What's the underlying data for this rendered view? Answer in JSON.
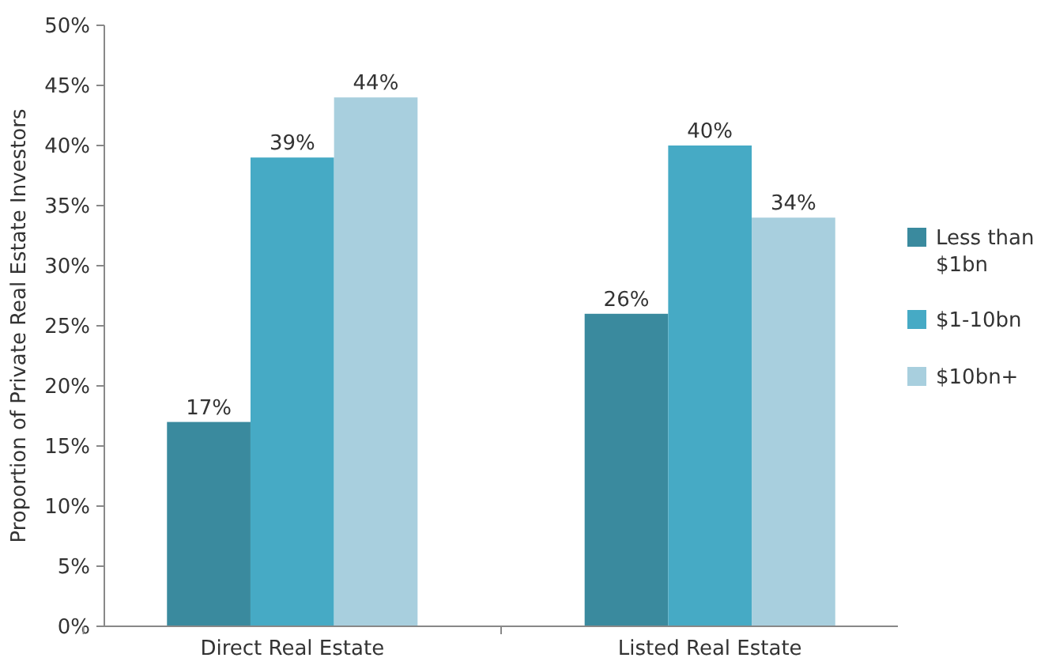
{
  "chart_data": {
    "type": "bar",
    "ylabel": "Proportion of Private Real Estate Investors",
    "categories": [
      "Direct Real Estate",
      "Listed Real Estate"
    ],
    "series": [
      {
        "name": "Less than $1bn",
        "color": "#3a8a9e",
        "values": [
          17,
          26
        ],
        "value_labels": [
          "17%",
          "26%"
        ]
      },
      {
        "name": "$1-10bn",
        "color": "#46aac5",
        "values": [
          39,
          40
        ],
        "value_labels": [
          "39%",
          "40%"
        ]
      },
      {
        "name": "$10bn+",
        "color": "#a8cfde",
        "values": [
          44,
          34
        ],
        "value_labels": [
          "44%",
          "34%"
        ]
      }
    ],
    "ylim": [
      0,
      50
    ],
    "yticks": [
      {
        "value": 0,
        "label": "0%"
      },
      {
        "value": 5,
        "label": "5%"
      },
      {
        "value": 10,
        "label": "10%"
      },
      {
        "value": 15,
        "label": "15%"
      },
      {
        "value": 20,
        "label": "20%"
      },
      {
        "value": 25,
        "label": "25%"
      },
      {
        "value": 30,
        "label": "30%"
      },
      {
        "value": 35,
        "label": "35%"
      },
      {
        "value": 40,
        "label": "40%"
      },
      {
        "value": 45,
        "label": "45%"
      },
      {
        "value": 50,
        "label": "50%"
      }
    ],
    "grid": false,
    "legend": "right"
  }
}
